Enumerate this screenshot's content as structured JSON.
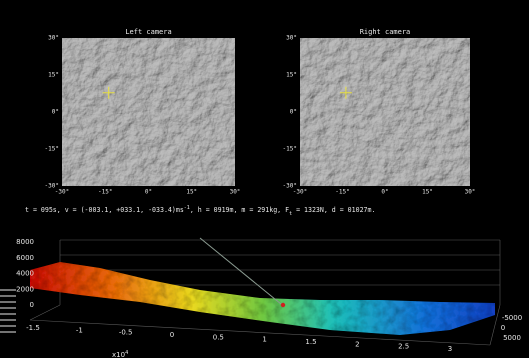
{
  "cameras": [
    {
      "title": "Left camera",
      "yticks": [
        "30°",
        "15°",
        "0°",
        "-15°",
        "-30°"
      ],
      "xticks": [
        "-30°",
        "-15°",
        "0°",
        "15°",
        "30°"
      ]
    },
    {
      "title": "Right camera",
      "yticks": [
        "30°",
        "15°",
        "0°",
        "-15°",
        "-30°"
      ],
      "xticks": [
        "-30°",
        "-15°",
        "0°",
        "15°",
        "30°"
      ]
    }
  ],
  "status": {
    "segments": [
      "t = 095s, v = (-003.1, +033.1, -033.4)ms",
      "-1",
      ", h = 0919m, m = 291kg, F",
      "t",
      " = 1323N, d = 01027m."
    ]
  },
  "terrain": {
    "zticks": [
      "8000",
      "6000",
      "4000",
      "2000",
      "0"
    ],
    "xticks": [
      "-1.5",
      "-1",
      "-0.5",
      "0",
      "0.5",
      "1",
      "1.5",
      "2",
      "2.5",
      "3"
    ],
    "yticks": [
      "-5000",
      "0",
      "5000"
    ],
    "xexponent": {
      "base": "x10",
      "power": "4"
    }
  }
}
